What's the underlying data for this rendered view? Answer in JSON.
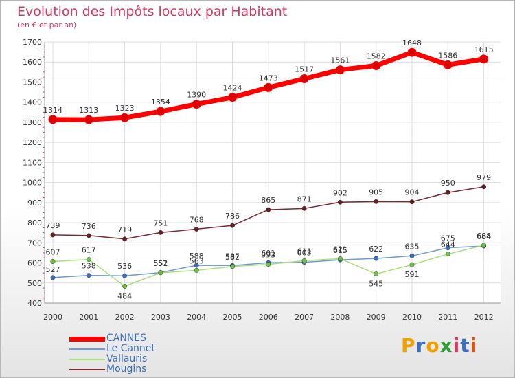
{
  "chart_data": {
    "type": "line",
    "title": "Evolution des Impôts locaux par Habitant",
    "subtitle": "(en € et par an)",
    "xlabel": "",
    "ylabel": "",
    "ylim": [
      400,
      1700
    ],
    "yticks": [
      400,
      500,
      600,
      700,
      800,
      900,
      1000,
      1100,
      1200,
      1300,
      1400,
      1500,
      1600,
      1700
    ],
    "grid": true,
    "legend_position": "bottom-left",
    "categories": [
      "2000",
      "2001",
      "2002",
      "2003",
      "2004",
      "2005",
      "2006",
      "2007",
      "2008",
      "2009",
      "2010",
      "2011",
      "2012"
    ],
    "series": [
      {
        "name": "CANNES",
        "color": "#ff0000",
        "marker": "#dd0000",
        "values": [
          1314,
          1313,
          1323,
          1354,
          1390,
          1424,
          1473,
          1517,
          1561,
          1582,
          1648,
          1586,
          1615
        ]
      },
      {
        "name": "Le Cannet",
        "color": "#6f9ad3",
        "marker": "#3a6fc0",
        "values": [
          527,
          538,
          536,
          552,
          588,
          587,
          601,
          603,
          615,
          622,
          635,
          675,
          684
        ]
      },
      {
        "name": "Vallauris",
        "color": "#a8e07a",
        "marker": "#6cc040",
        "values": [
          607,
          617,
          484,
          551,
          563,
          582,
          593,
          611,
          621,
          545,
          591,
          644,
          688
        ]
      },
      {
        "name": "Mougins",
        "color": "#7a2a30",
        "marker": "#6a1e24",
        "values": [
          739,
          736,
          719,
          751,
          768,
          786,
          865,
          871,
          902,
          905,
          904,
          950,
          979
        ]
      }
    ]
  },
  "branding": {
    "logo_text": "Proxiti",
    "logo_colors": [
      "#f0a000",
      "#3a6fc0",
      "#f0a000",
      "#2f9e3a",
      "#d9365e",
      "#3a6fc0",
      "#e05010"
    ]
  }
}
